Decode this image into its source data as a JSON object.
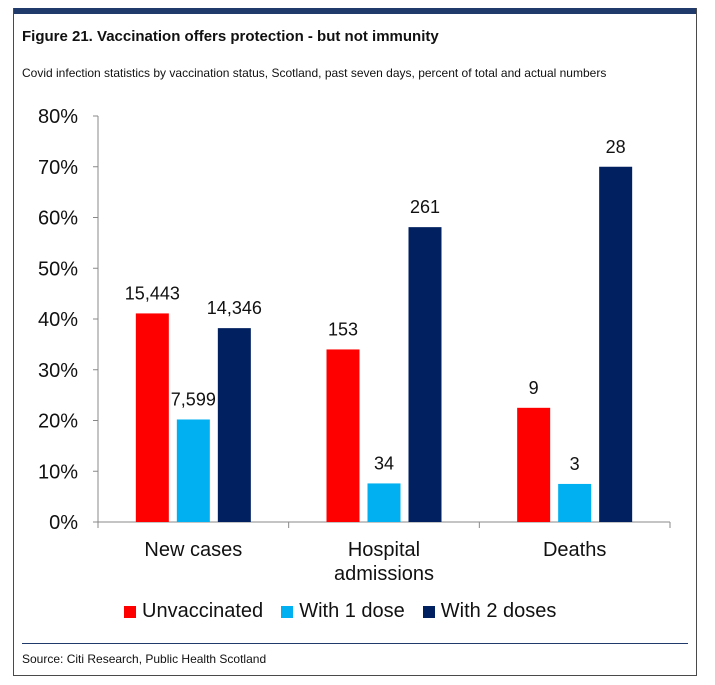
{
  "header": {
    "title": "Figure 21. Vaccination offers protection - but not immunity",
    "subtitle": "Covid infection statistics by vaccination status, Scotland, past seven days, percent of total and actual numbers"
  },
  "footer": {
    "source": "Source: Citi Research, Public Health Scotland"
  },
  "chart_data": {
    "type": "bar",
    "categories": [
      [
        "New cases"
      ],
      [
        "Hospital",
        "admissions"
      ],
      [
        "Deaths"
      ]
    ],
    "series": [
      {
        "name": "Unvaccinated",
        "color": "#ff0000",
        "values": [
          41.1,
          34.0,
          22.5
        ],
        "labels": [
          "15,443",
          "153",
          "9"
        ]
      },
      {
        "name": "With 1 dose",
        "color": "#00b0f0",
        "values": [
          20.2,
          7.6,
          7.5
        ],
        "labels": [
          "7,599",
          "34",
          "3"
        ]
      },
      {
        "name": "With 2 doses",
        "color": "#002060",
        "values": [
          38.2,
          58.1,
          70.0
        ],
        "labels": [
          "14,346",
          "261",
          "28"
        ]
      }
    ],
    "yticks": [
      "0%",
      "10%",
      "20%",
      "30%",
      "40%",
      "50%",
      "60%",
      "70%",
      "80%"
    ],
    "ylim": [
      0,
      80
    ],
    "grid": false,
    "legend_position": "bottom"
  }
}
